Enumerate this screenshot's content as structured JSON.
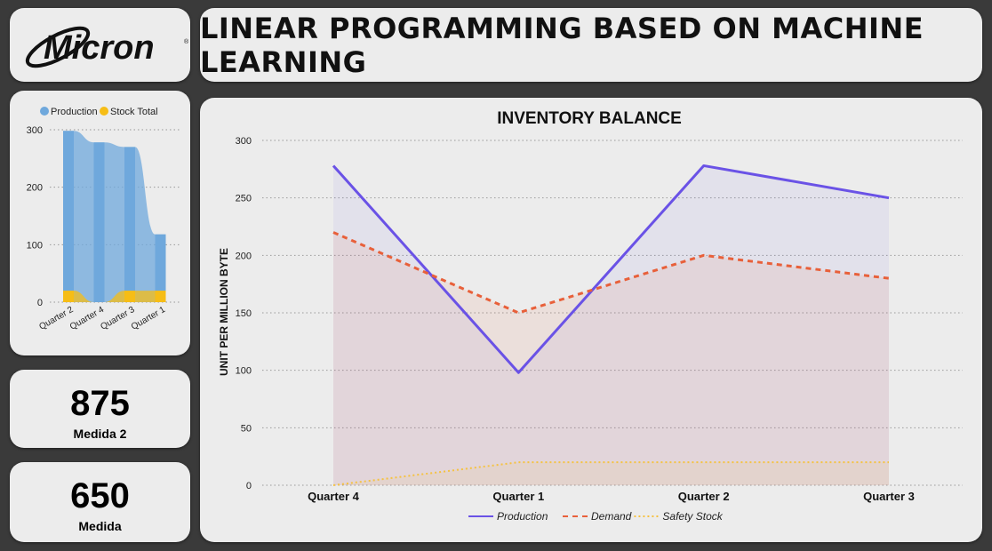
{
  "header": {
    "logo_text": "Micron",
    "title": "LINEAR PROGRAMMING BASED ON MACHINE LEARNING"
  },
  "kpis": [
    {
      "value": "875",
      "label": "Medida 2"
    },
    {
      "value": "650",
      "label": "Medida"
    }
  ],
  "colors": {
    "production": "#6a52e6",
    "demand": "#e8603a",
    "safety": "#f5c242",
    "mini_production": "#6fa8dc",
    "mini_stock": "#f6bd16"
  },
  "chart_data": [
    {
      "type": "area",
      "title": "INVENTORY BALANCE",
      "xlabel": "",
      "ylabel": "UNIT PER MILLION BYTE",
      "categories": [
        "Quarter 4",
        "Quarter 1",
        "Quarter 2",
        "Quarter 3"
      ],
      "ylim": [
        0,
        300
      ],
      "yticks": [
        0,
        50,
        100,
        150,
        200,
        250,
        300
      ],
      "grid": true,
      "legend_position": "bottom",
      "series": [
        {
          "name": "Production",
          "values": [
            278,
            98,
            278,
            250
          ],
          "style": "solid"
        },
        {
          "name": "Demand",
          "values": [
            220,
            150,
            200,
            180
          ],
          "style": "dashed"
        },
        {
          "name": "Safety Stock",
          "values": [
            0,
            20,
            20,
            20
          ],
          "style": "dotted"
        }
      ]
    },
    {
      "type": "bar",
      "title": "",
      "categories": [
        "Quarter 2",
        "Quarter 4",
        "Quarter 3",
        "Quarter 1"
      ],
      "ylim": [
        0,
        300
      ],
      "yticks": [
        0,
        100,
        200,
        300
      ],
      "grid": true,
      "legend_position": "top",
      "series": [
        {
          "name": "Production",
          "values": [
            298,
            278,
            270,
            118
          ]
        },
        {
          "name": "Stock Total",
          "values": [
            20,
            0,
            20,
            20
          ]
        }
      ]
    }
  ]
}
